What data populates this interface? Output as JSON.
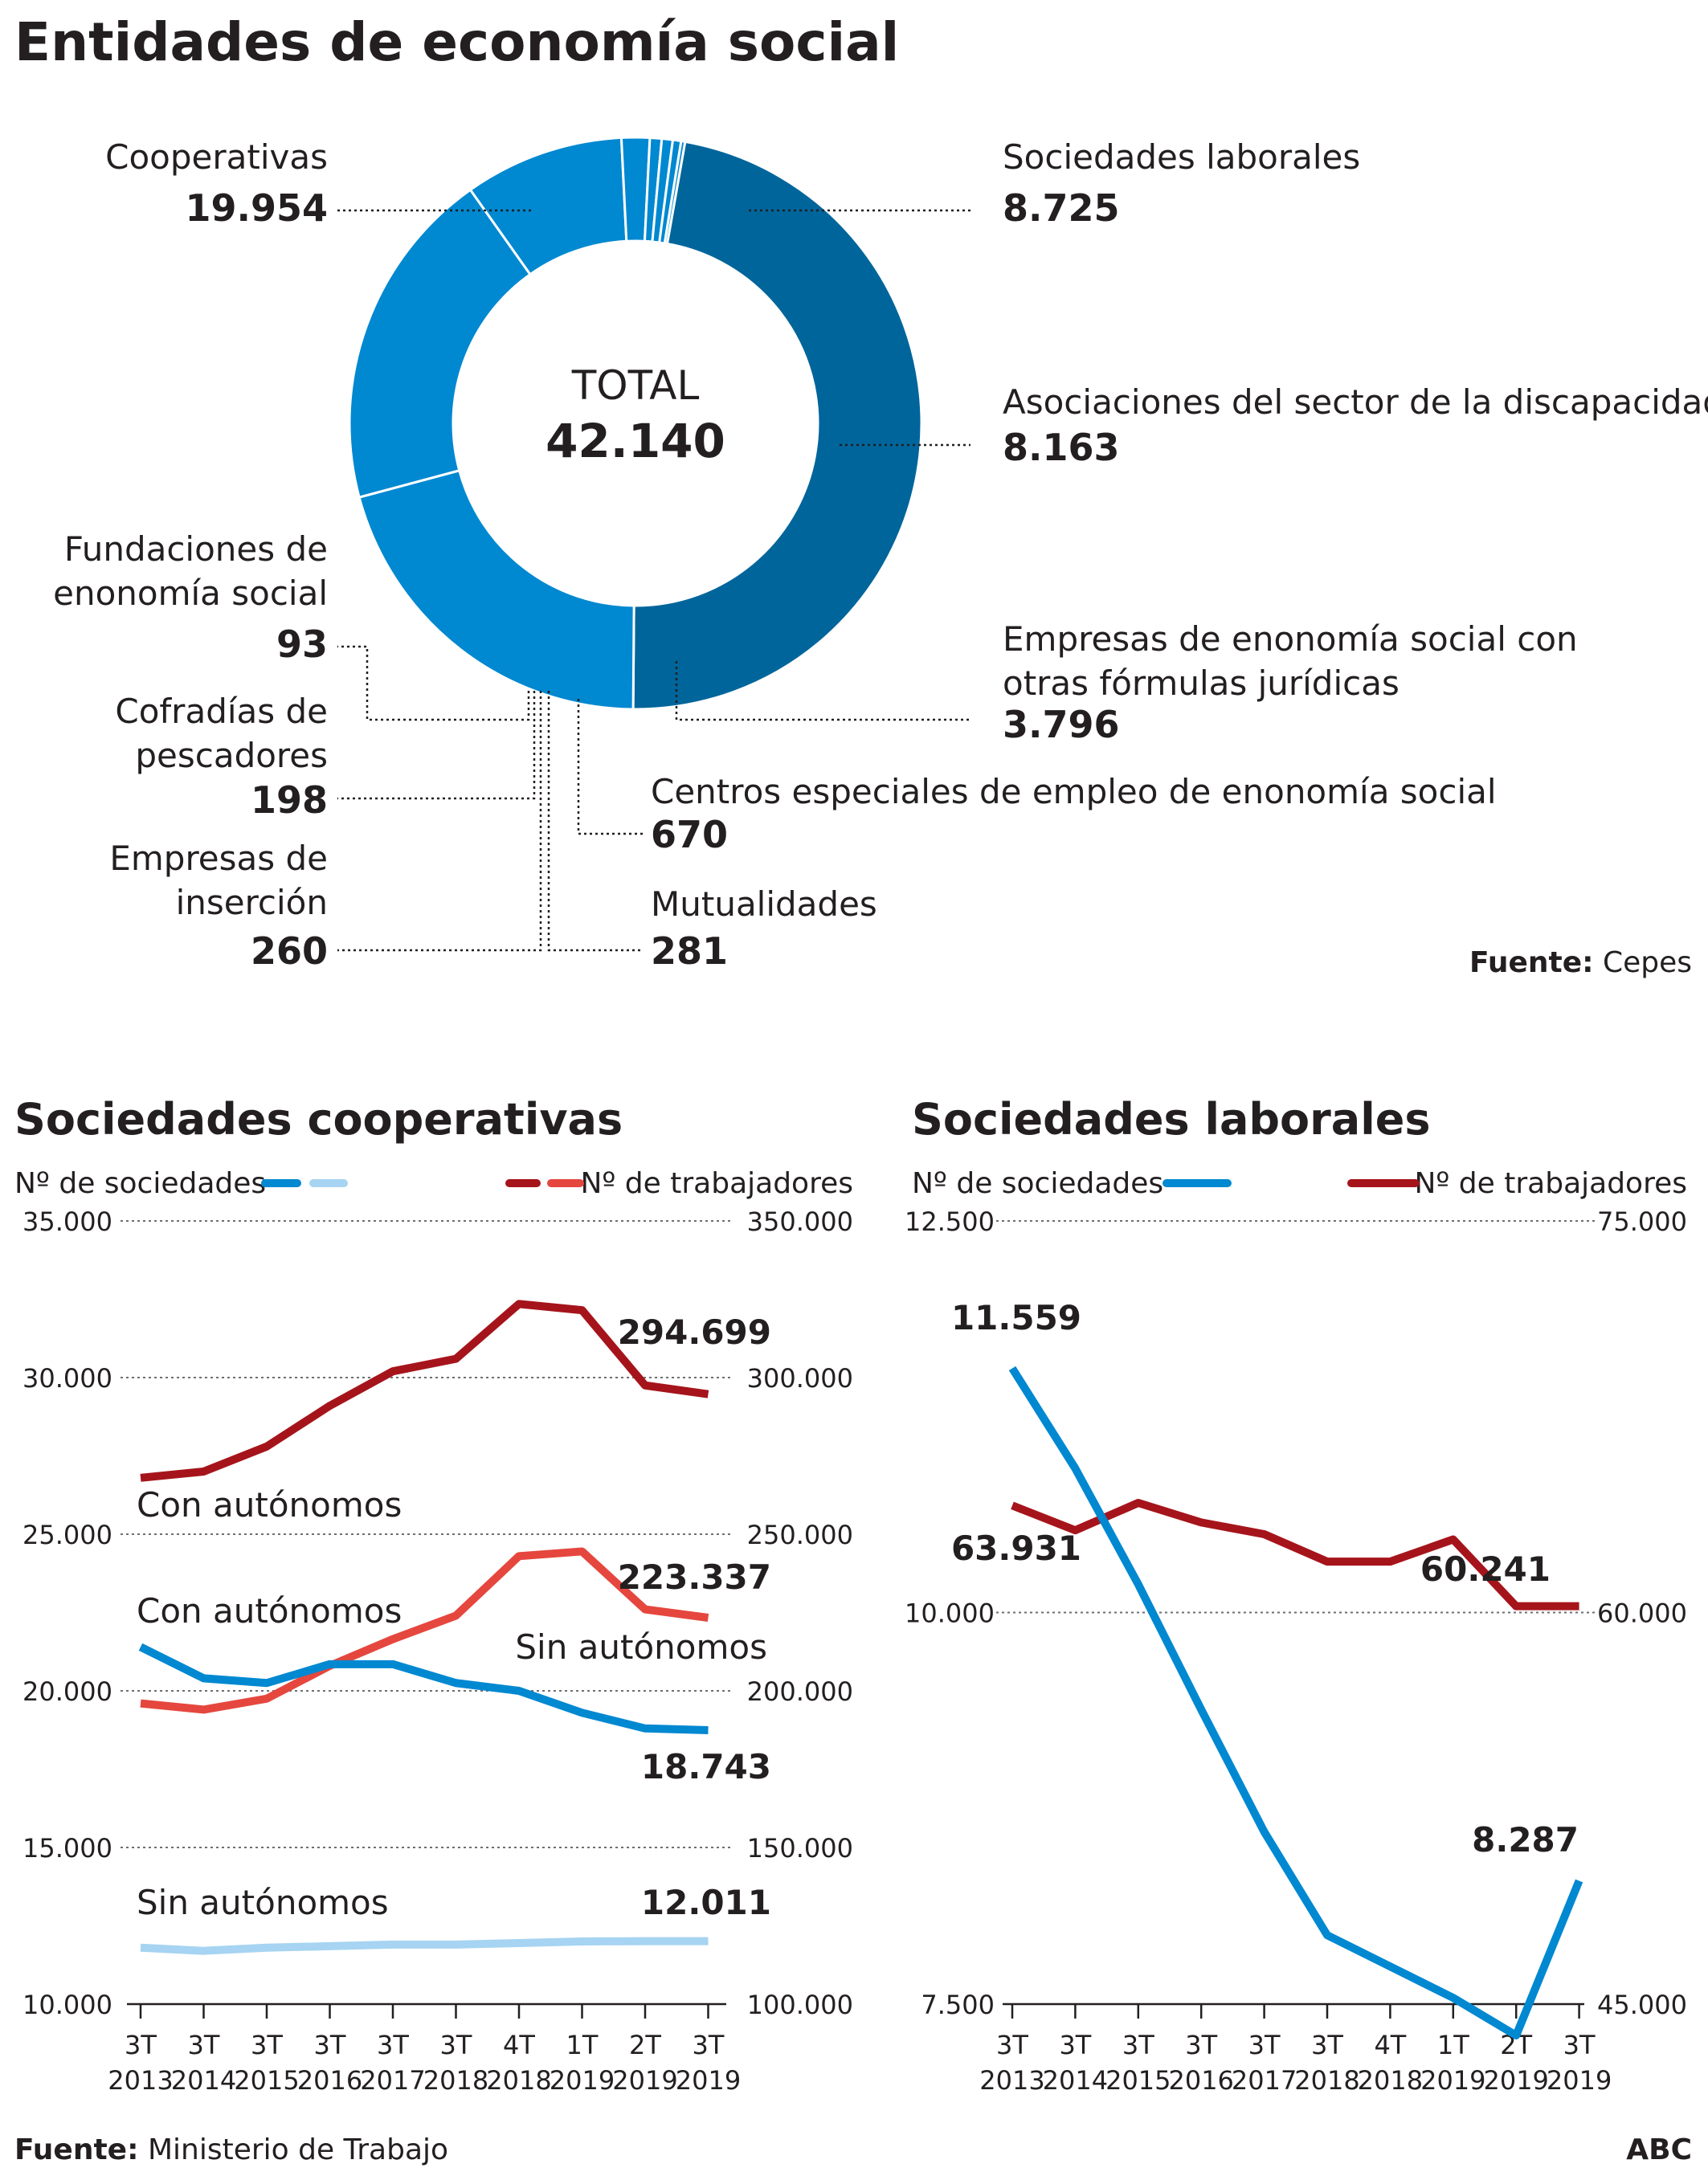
{
  "page": {
    "title": "Entidades de economía social",
    "source_top_bold": "Fuente:",
    "source_top_text": " Cepes",
    "source_bottom_bold": "Fuente:",
    "source_bottom_text": " Ministerio de Trabajo",
    "brand": "ABC"
  },
  "colors": {
    "dark_blue": "#00659b",
    "mid_blue": "#0088d1",
    "light_blue": "#a6d4f2",
    "dark_red": "#a6141b",
    "light_red": "#e5473e",
    "text": "#231f20",
    "grid": "#6d6e71"
  },
  "chart_data": [
    {
      "type": "pie",
      "donut": true,
      "center_label": "TOTAL",
      "center_value": "42.140",
      "slices": [
        {
          "name": "Cooperativas",
          "value": 19954,
          "label": "19.954"
        },
        {
          "name": "Sociedades laborales",
          "value": 8725,
          "label": "8.725"
        },
        {
          "name": "Asociaciones del sector de la discapacidad",
          "value": 8163,
          "label": "8.163"
        },
        {
          "name": "Empresas de enonomía social con otras fórmulas jurídicas",
          "value": 3796,
          "label": "3.796"
        },
        {
          "name": "Centros especiales de empleo de enonomía social",
          "value": 670,
          "label": "670"
        },
        {
          "name": "Mutualidades",
          "value": 281,
          "label": "281"
        },
        {
          "name": "Empresas de inserción",
          "value": 260,
          "label": "260"
        },
        {
          "name": "Cofradías de pescadores",
          "value": 198,
          "label": "198"
        },
        {
          "name": "Fundaciones de enonomía social",
          "value": 93,
          "label": "93"
        }
      ]
    },
    {
      "type": "line",
      "title": "Sociedades cooperativas",
      "legend_left": "Nº de sociedades",
      "legend_right": "Nº de trabajadores",
      "categories": [
        [
          "3T",
          "2013"
        ],
        [
          "3T",
          "2014"
        ],
        [
          "3T",
          "2015"
        ],
        [
          "3T",
          "2016"
        ],
        [
          "3T",
          "2017"
        ],
        [
          "3T",
          "2018"
        ],
        [
          "4T",
          "2018"
        ],
        [
          "1T",
          "2019"
        ],
        [
          "2T",
          "2019"
        ],
        [
          "3T",
          "2019"
        ]
      ],
      "y_left": {
        "min": 10000,
        "max": 35000,
        "ticks": [
          "10.000",
          "15.000",
          "20.000",
          "25.000",
          "30.000",
          "35.000"
        ]
      },
      "y_right": {
        "min": 100000,
        "max": 350000,
        "ticks": [
          "100.000",
          "150.000",
          "200.000",
          "250.000",
          "300.000",
          "350.000"
        ]
      },
      "series": [
        {
          "name": "Con autónomos",
          "axis": "right",
          "color": "#a6141b",
          "values": [
            268000,
            270000,
            278000,
            291000,
            302000,
            306000,
            323500,
            321500,
            297500,
            294699
          ],
          "end_label": "294.699"
        },
        {
          "name": "Sin autónomos",
          "axis": "right",
          "color": "#e5473e",
          "values": [
            196000,
            194000,
            197500,
            208000,
            216500,
            224000,
            243000,
            244500,
            226000,
            223337
          ],
          "end_label": "223.337"
        },
        {
          "name": "Con autónomos",
          "axis": "left",
          "color": "#0088d1",
          "values": [
            21400,
            20400,
            20250,
            20850,
            20850,
            20250,
            20000,
            19300,
            18800,
            18743
          ],
          "end_label": "18.743"
        },
        {
          "name": "Sin autónomos",
          "axis": "left",
          "color": "#a6d4f2",
          "values": [
            11800,
            11700,
            11800,
            11850,
            11900,
            11900,
            11950,
            12000,
            12010,
            12011
          ],
          "end_label": "12.011"
        }
      ]
    },
    {
      "type": "line",
      "title": "Sociedades laborales",
      "legend_left": "Nº de sociedades",
      "legend_right": "Nº de trabajadores",
      "categories": [
        [
          "3T",
          "2013"
        ],
        [
          "3T",
          "2014"
        ],
        [
          "3T",
          "2015"
        ],
        [
          "3T",
          "2016"
        ],
        [
          "3T",
          "2017"
        ],
        [
          "3T",
          "2018"
        ],
        [
          "4T",
          "2018"
        ],
        [
          "1T",
          "2019"
        ],
        [
          "2T",
          "2019"
        ],
        [
          "3T",
          "2019"
        ]
      ],
      "y_left": {
        "min": 7500,
        "max": 12500,
        "ticks": [
          "7.500",
          "10.000",
          "12.500"
        ]
      },
      "y_right": {
        "min": 45000,
        "max": 75000,
        "ticks": [
          "45.000",
          "60.000",
          "75.000"
        ]
      },
      "series": [
        {
          "name": "Nº de trabajadores",
          "axis": "right",
          "color": "#a6141b",
          "values": [
            64100,
            63150,
            64200,
            63450,
            63000,
            61950,
            61950,
            62800,
            60241,
            60241
          ],
          "start_label": "63.931",
          "end_label": "60.241"
        },
        {
          "name": "Nº de sociedades",
          "axis": "left",
          "color": "#0088d1",
          "values": [
            11559,
            10920,
            10180,
            9380,
            8600,
            7940,
            7740,
            7540,
            7300,
            8287
          ],
          "start_label": "11.559",
          "end_label": "8.287"
        }
      ]
    }
  ],
  "labels": {
    "pie": [
      {
        "lines": [
          "Cooperativas"
        ],
        "value": "19.954"
      },
      {
        "lines": [
          "Sociedades laborales"
        ],
        "value": "8.725"
      },
      {
        "lines": [
          "Asociaciones del sector de la discapacidad"
        ],
        "value": "8.163"
      },
      {
        "lines": [
          "Empresas de enonomía social con",
          "otras fórmulas jurídicas"
        ],
        "value": "3.796"
      },
      {
        "lines": [
          "Centros especiales de empleo de enonomía social"
        ],
        "value": "670"
      },
      {
        "lines": [
          "Mutualidades"
        ],
        "value": "281"
      },
      {
        "lines": [
          "Empresas de",
          "inserción"
        ],
        "value": "260"
      },
      {
        "lines": [
          "Cofradías de",
          "pescadores"
        ],
        "value": "198"
      },
      {
        "lines": [
          "Fundaciones de",
          "enonomía social"
        ],
        "value": "93"
      }
    ],
    "coop_series_labels": {
      "con_autonomos_trab": "Con autónomos",
      "sin_autonomos_trab": "Sin autónomos",
      "con_autonomos_soc": "Con autónomos",
      "sin_autonomos_soc": "Sin autónomos"
    }
  }
}
